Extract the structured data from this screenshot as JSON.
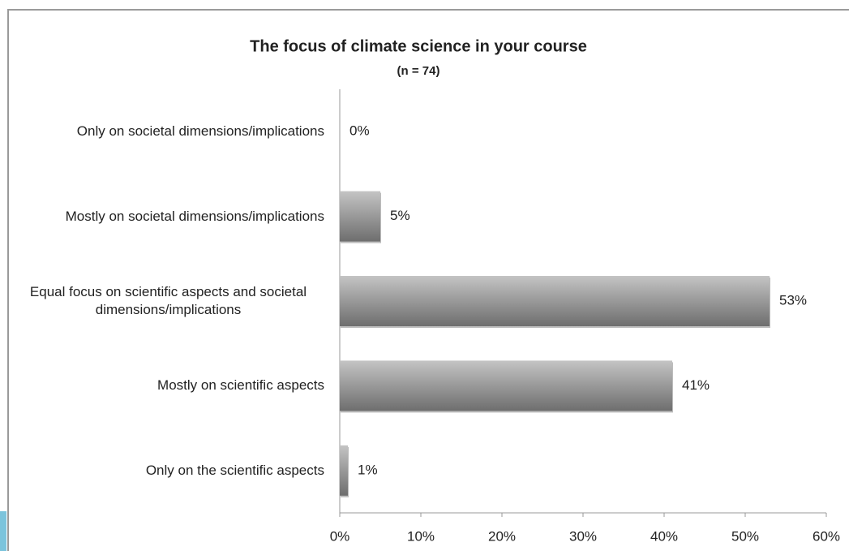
{
  "chart_data": {
    "type": "bar",
    "orientation": "horizontal",
    "title": "The focus of climate science in your course",
    "subtitle": "(n = 74)",
    "categories": [
      "Only on societal dimensions/implications",
      "Mostly on societal dimensions/implications",
      "Equal focus on scientific aspects and societal dimensions/implications",
      "Mostly on scientific aspects",
      "Only on the scientific aspects"
    ],
    "values": [
      0,
      5,
      53,
      41,
      1
    ],
    "value_labels": [
      "0%",
      "5%",
      "53%",
      "41%",
      "1%"
    ],
    "color": "#8c8c8c",
    "xlim": [
      0,
      60
    ],
    "xticks": [
      {
        "value": 0,
        "label": "0%"
      },
      {
        "value": 10,
        "label": "10%"
      },
      {
        "value": 20,
        "label": "20%"
      },
      {
        "value": 30,
        "label": "30%"
      },
      {
        "value": 40,
        "label": "40%"
      },
      {
        "value": 50,
        "label": "50%"
      },
      {
        "value": 60,
        "label": "60%"
      }
    ],
    "grid": false
  }
}
